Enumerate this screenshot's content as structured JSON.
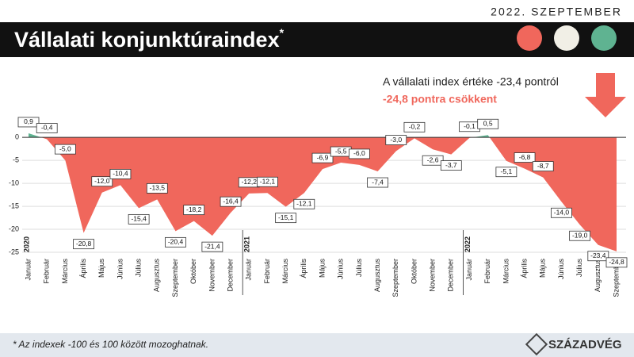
{
  "header": {
    "date": "2022. SZEPTEMBER",
    "title": "Vállalati konjunktúraindex",
    "title_mark": "*"
  },
  "chart_data": {
    "type": "area",
    "annotation": [
      "A vállalati index értéke -23,4 pontról",
      "-24,8 pontra csökkent"
    ],
    "categories": [
      "Január",
      "Február",
      "Március",
      "Április",
      "Május",
      "Június",
      "Július",
      "Augusztus",
      "Szeptember",
      "Október",
      "November",
      "December",
      "Január",
      "Február",
      "Március",
      "Április",
      "Május",
      "Június",
      "Július",
      "Augusztus",
      "Szeptember",
      "Október",
      "November",
      "December",
      "Január",
      "Február",
      "Március",
      "Április",
      "Május",
      "Június",
      "Július",
      "Augusztus",
      "Szeptember"
    ],
    "year_labels": [
      "2020",
      "2021",
      "2022"
    ],
    "values": [
      0.9,
      -0.4,
      -5.0,
      -20.8,
      -12.0,
      -10.4,
      -15.4,
      -13.5,
      -20.4,
      -18.2,
      -21.4,
      -16.4,
      -12.2,
      -12.1,
      -15.1,
      -12.1,
      -6.9,
      -5.5,
      -6.0,
      -7.4,
      -3.0,
      -0.2,
      -2.6,
      -3.7,
      -0.1,
      0.5,
      -5.1,
      -6.8,
      -8.7,
      -14.0,
      -19.0,
      -23.4,
      -24.8
    ],
    "value_labels": [
      "0,9",
      "-0,4",
      "-5,0",
      "-20,8",
      "-12,0",
      "-10,4",
      "-15,4",
      "-13,5",
      "-20,4",
      "-18,2",
      "-21,4",
      "-16,4",
      "-12,2",
      "-12,1",
      "-15,1",
      "-12,1",
      "-6,9",
      "-5,5",
      "-6,0",
      "-7,4",
      "-3,0",
      "-0,2",
      "-2,6",
      "-3,7",
      "-0,1",
      "0,5",
      "-5,1",
      "-6,8",
      "-8,7",
      "-14,0",
      "-19,0",
      "-23,4",
      "-24,8"
    ],
    "negative_color": "#f0675c",
    "positive_color": "#5fb391",
    "ylim": [
      -25,
      4
    ],
    "yticks": [
      0,
      -5,
      -10,
      -15,
      -20,
      -25
    ]
  },
  "footer": {
    "note": "* Az indexek -100 és 100 között mozoghatnak.",
    "logo": "SZÁZADVÉG"
  }
}
